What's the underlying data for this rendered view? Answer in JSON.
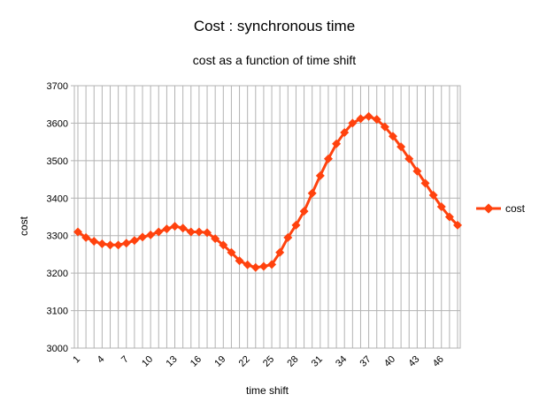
{
  "chart_data": {
    "type": "line",
    "title": "Cost : synchronous time",
    "subtitle": "cost as a function of time shift",
    "xlabel": "time shift",
    "ylabel": "cost",
    "ylim": [
      3000,
      3700
    ],
    "yticks": [
      3000,
      3100,
      3200,
      3300,
      3400,
      3500,
      3600,
      3700
    ],
    "xticks": [
      "1",
      "4",
      "7",
      "10",
      "13",
      "16",
      "19",
      "22",
      "25",
      "28",
      "31",
      "34",
      "37",
      "40",
      "43",
      "46"
    ],
    "grid": true,
    "legend_position": "right",
    "color": "#ff420e",
    "x": [
      1,
      2,
      3,
      4,
      5,
      6,
      7,
      8,
      9,
      10,
      11,
      12,
      13,
      14,
      15,
      16,
      17,
      18,
      19,
      20,
      21,
      22,
      23,
      24,
      25,
      26,
      27,
      28,
      29,
      30,
      31,
      32,
      33,
      34,
      35,
      36,
      37,
      38,
      39,
      40,
      41,
      42,
      43,
      44,
      45,
      46,
      47,
      48
    ],
    "series": [
      {
        "name": "cost",
        "values": [
          3310,
          3295,
          3285,
          3278,
          3275,
          3275,
          3280,
          3287,
          3296,
          3302,
          3310,
          3318,
          3325,
          3320,
          3310,
          3310,
          3308,
          3292,
          3275,
          3255,
          3233,
          3222,
          3215,
          3218,
          3223,
          3255,
          3295,
          3328,
          3365,
          3413,
          3460,
          3505,
          3545,
          3575,
          3600,
          3612,
          3618,
          3610,
          3590,
          3565,
          3537,
          3505,
          3472,
          3440,
          3408,
          3377,
          3350,
          3328
        ]
      }
    ]
  }
}
